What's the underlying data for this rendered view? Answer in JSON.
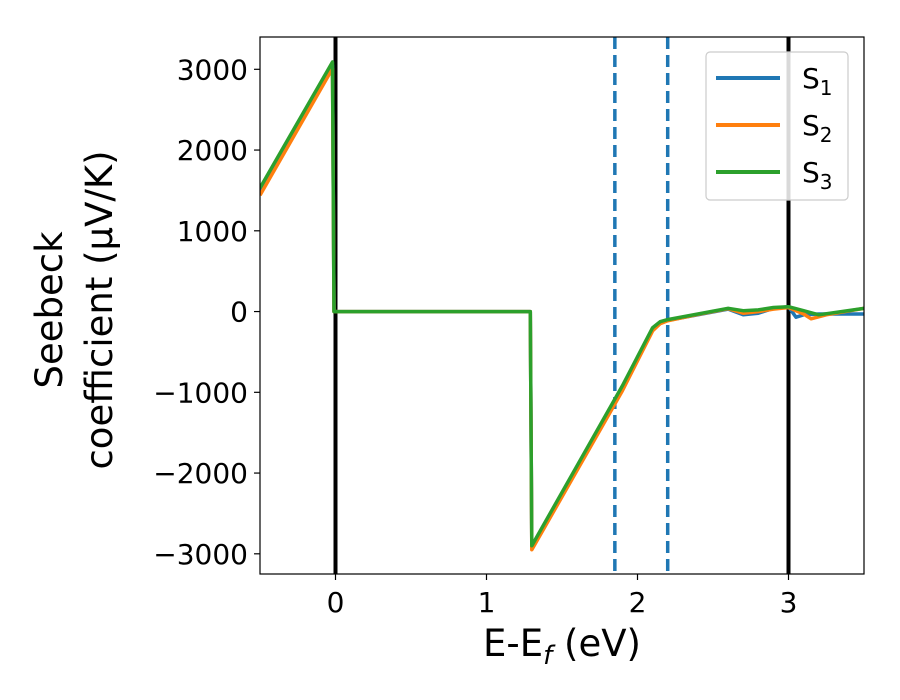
{
  "chart_data": {
    "type": "line",
    "xlabel": "E-E",
    "xlabel_sub": "f",
    "xlabel_unit": " (eV)",
    "ylabel_line1": "Seebeck",
    "ylabel_line2": "coefficient  (μV/K)",
    "xlim": [
      -0.5,
      3.5
    ],
    "ylim": [
      -3250,
      3400
    ],
    "x_ticks": [
      0,
      1,
      2,
      3
    ],
    "x_tick_labels": [
      "0",
      "1",
      "2",
      "3"
    ],
    "y_ticks": [
      -3000,
      -2000,
      -1000,
      0,
      1000,
      2000,
      3000
    ],
    "y_tick_labels": [
      "−3000",
      "−2000",
      "−1000",
      "0",
      "1000",
      "2000",
      "3000"
    ],
    "grid": false,
    "legend_position": "top-right",
    "vlines": [
      {
        "x": 0,
        "style": "solid",
        "color": "#000000"
      },
      {
        "x": 3,
        "style": "solid",
        "color": "#000000"
      },
      {
        "x": 1.85,
        "style": "dashed",
        "color": "#1f77b4"
      },
      {
        "x": 2.2,
        "style": "dashed",
        "color": "#1f77b4"
      }
    ],
    "series": [
      {
        "name": "S",
        "sub": "1",
        "color": "#1f77b4",
        "points": [
          [
            -0.5,
            1480
          ],
          [
            -0.02,
            3050
          ],
          [
            -0.01,
            0
          ],
          [
            1.29,
            0
          ],
          [
            1.3,
            -2920
          ],
          [
            1.9,
            -950
          ],
          [
            2.1,
            -220
          ],
          [
            2.15,
            -140
          ],
          [
            2.2,
            -110
          ],
          [
            2.4,
            -40
          ],
          [
            2.6,
            30
          ],
          [
            2.7,
            -40
          ],
          [
            2.8,
            -20
          ],
          [
            2.9,
            40
          ],
          [
            3.0,
            60
          ],
          [
            3.05,
            -70
          ],
          [
            3.1,
            -40
          ],
          [
            3.2,
            -30
          ],
          [
            3.5,
            -30
          ]
        ]
      },
      {
        "name": "S",
        "sub": "2",
        "color": "#ff7f0e",
        "points": [
          [
            -0.5,
            1440
          ],
          [
            -0.02,
            3010
          ],
          [
            -0.01,
            0
          ],
          [
            1.29,
            0
          ],
          [
            1.3,
            -2950
          ],
          [
            1.9,
            -980
          ],
          [
            2.1,
            -240
          ],
          [
            2.15,
            -150
          ],
          [
            2.2,
            -115
          ],
          [
            2.4,
            -35
          ],
          [
            2.6,
            35
          ],
          [
            2.7,
            -20
          ],
          [
            2.8,
            0
          ],
          [
            2.9,
            30
          ],
          [
            3.0,
            50
          ],
          [
            3.1,
            -30
          ],
          [
            3.15,
            -90
          ],
          [
            3.25,
            -40
          ],
          [
            3.5,
            40
          ]
        ]
      },
      {
        "name": "S",
        "sub": "3",
        "color": "#2ca02c",
        "points": [
          [
            -0.5,
            1530
          ],
          [
            -0.02,
            3090
          ],
          [
            -0.01,
            0
          ],
          [
            1.29,
            0
          ],
          [
            1.3,
            -2900
          ],
          [
            1.9,
            -920
          ],
          [
            2.1,
            -200
          ],
          [
            2.15,
            -125
          ],
          [
            2.2,
            -100
          ],
          [
            2.4,
            -30
          ],
          [
            2.6,
            40
          ],
          [
            2.7,
            10
          ],
          [
            2.8,
            20
          ],
          [
            2.9,
            50
          ],
          [
            3.0,
            60
          ],
          [
            3.1,
            10
          ],
          [
            3.2,
            -40
          ],
          [
            3.35,
            0
          ],
          [
            3.5,
            40
          ]
        ]
      }
    ]
  }
}
